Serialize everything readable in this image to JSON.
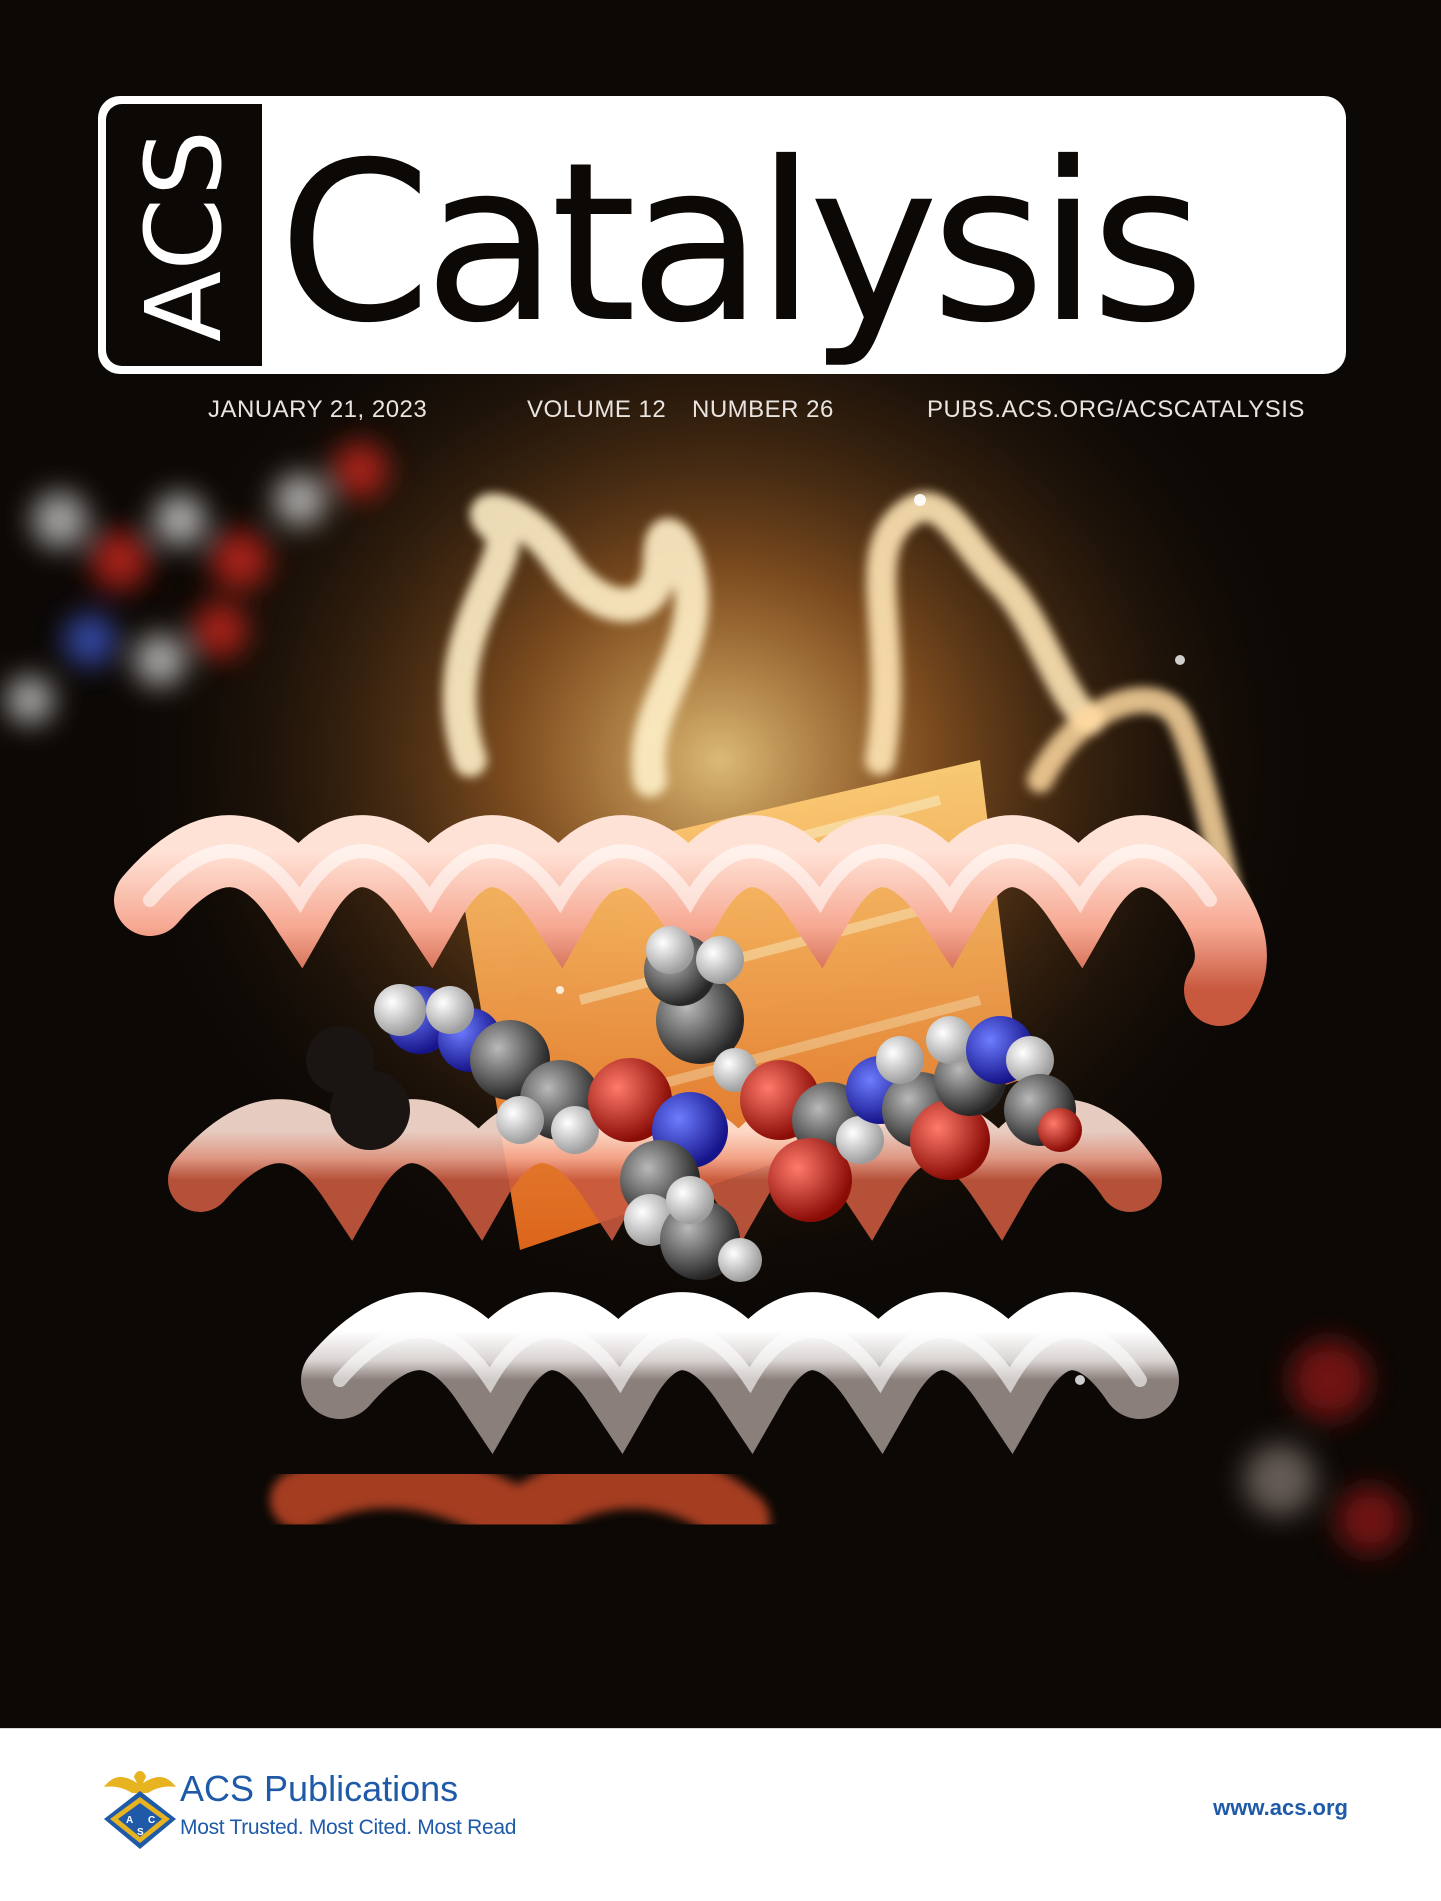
{
  "masthead": {
    "brand": "ACS",
    "title": "Catalysis"
  },
  "issue": {
    "date": "JANUARY 21, 2023",
    "volume": "VOLUME 12",
    "number": "NUMBER 26",
    "url": "PUBS.ACS.ORG/ACSCATALYSIS"
  },
  "cover_image": {
    "icon": "protein-molecule-illustration"
  },
  "footer": {
    "publisher_name": "ACS Publications",
    "tagline": "Most Trusted. Most Cited. Most Read",
    "website": "www.acs.org",
    "logo_icon": "acs-eagle-seal-icon"
  },
  "colors": {
    "cover_background": "#0c0805",
    "masthead_background": "#ffffff",
    "publisher_blue": "#1e5aa8",
    "logo_gold": "#e8b320"
  }
}
